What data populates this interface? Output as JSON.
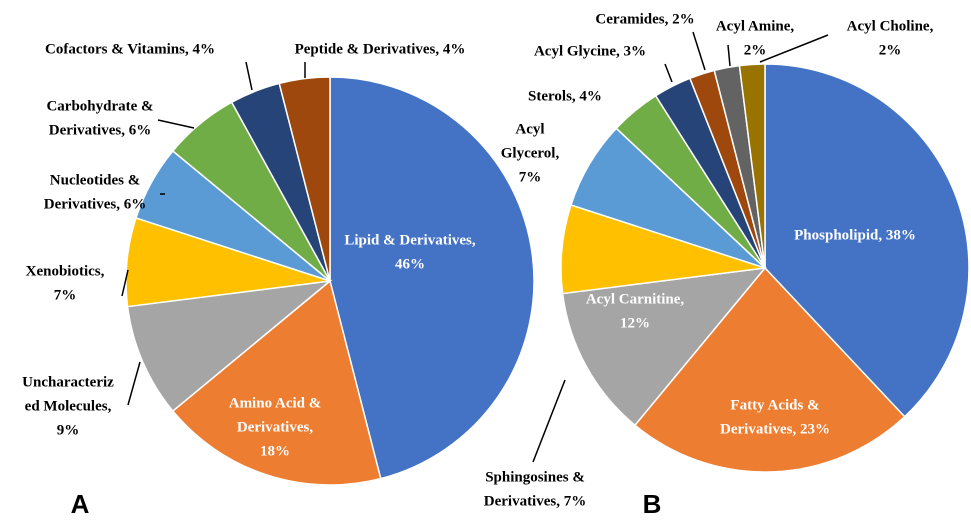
{
  "chart_data": [
    {
      "type": "pie",
      "panel": "A",
      "values": [
        46,
        18,
        9,
        7,
        6,
        6,
        4,
        4
      ],
      "value_labels": [
        [
          "Lipid & Derivatives,",
          "46%"
        ],
        [
          "Amino Acid &",
          "Derivatives,",
          "18%"
        ],
        [
          "Uncharacteriz",
          "ed Molecules,",
          "9%"
        ],
        [
          "Xenobiotics,",
          "7%"
        ],
        [
          "Nucleotides &",
          "Derivatives, 6%"
        ],
        [
          "Carbohydrate &",
          "Derivatives, 6%"
        ],
        [
          "Cofactors & Vitamins, 4%"
        ],
        [
          "Peptide & Derivatives, 4%"
        ]
      ],
      "colors": [
        "#4472c4",
        "#ed7d31",
        "#a5a5a5",
        "#ffc000",
        "#5b9bd5",
        "#70ad47",
        "#264478",
        "#9e480e"
      ]
    },
    {
      "type": "pie",
      "panel": "B",
      "values": [
        38,
        23,
        12,
        7,
        7,
        4,
        3,
        2,
        2,
        2
      ],
      "value_labels": [
        [
          "Phospholipid, 38%"
        ],
        [
          "Fatty Acids &",
          "Derivatives, 23%"
        ],
        [
          "Acyl Carnitine,",
          "12%"
        ],
        [
          "Sphingosines &",
          "Derivatives, 7%"
        ],
        [
          "Acyl",
          "Glycerol,",
          "7%"
        ],
        [
          "Sterols, 4%"
        ],
        [
          "Acyl Glycine, 3%"
        ],
        [
          "Ceramides, 2%"
        ],
        [
          "Acyl Amine,",
          "2%"
        ],
        [
          "Acyl Choline,",
          "2%"
        ]
      ],
      "colors": [
        "#4472c4",
        "#ed7d31",
        "#a5a5a5",
        "#ffc000",
        "#5b9bd5",
        "#70ad47",
        "#264478",
        "#9e480e",
        "#636363",
        "#997300"
      ]
    }
  ]
}
